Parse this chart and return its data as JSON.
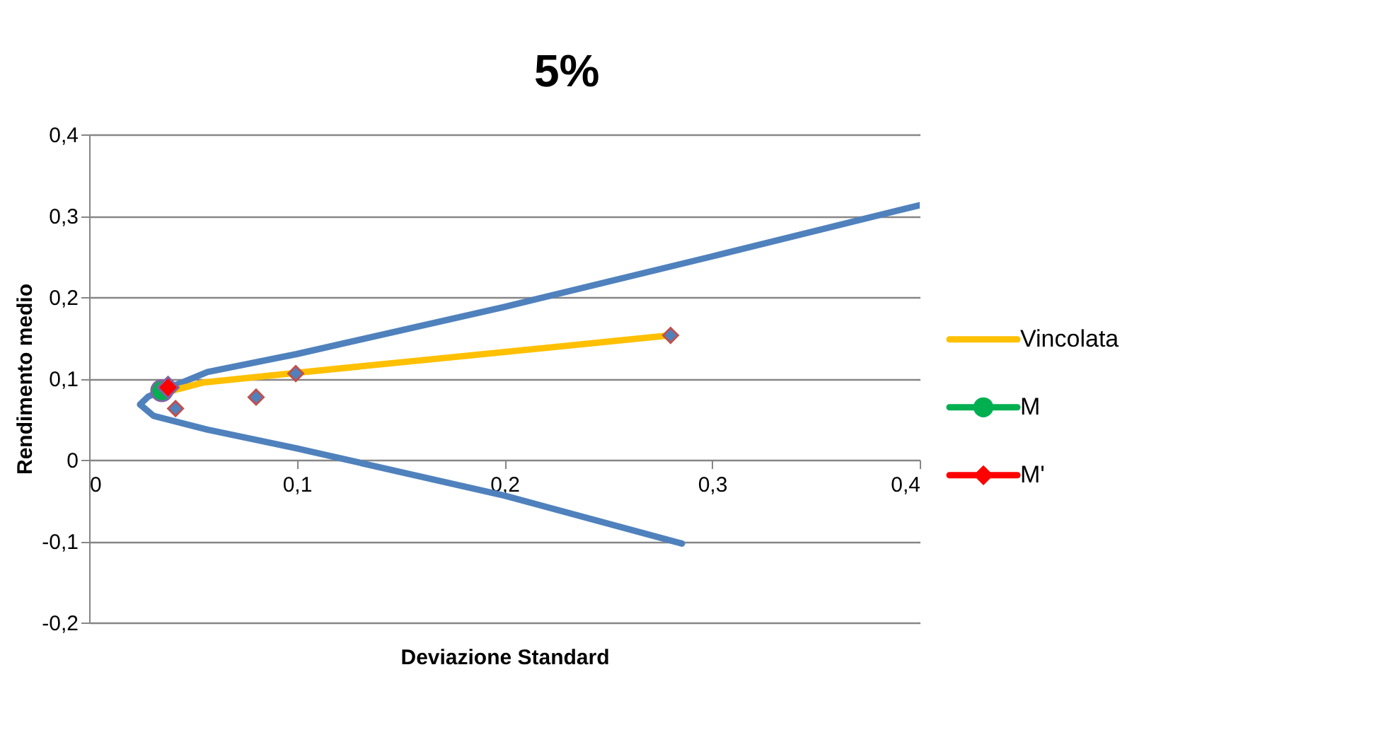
{
  "chart_data": {
    "type": "line",
    "title": "5%",
    "xlabel": "Deviazione Standard",
    "ylabel": "Rendimento medio",
    "xlim": [
      0,
      0.4
    ],
    "ylim": [
      -0.2,
      0.4
    ],
    "xticks": [
      0,
      {
        "value": 0.1,
        "label": "0,1"
      },
      {
        "value": 0.2,
        "label": "0,2"
      },
      {
        "value": 0.3,
        "label": "0,3"
      },
      {
        "value": 0.4,
        "label": "0,4"
      }
    ],
    "yticks": [
      {
        "value": -0.2,
        "label": "-0,2"
      },
      {
        "value": -0.1,
        "label": "-0,1"
      },
      0,
      {
        "value": 0.1,
        "label": "0,1"
      },
      {
        "value": 0.2,
        "label": "0,2"
      },
      {
        "value": 0.3,
        "label": "0,3"
      },
      {
        "value": 0.4,
        "label": "0,4"
      }
    ],
    "grid": "y",
    "legend": "right",
    "series": [
      {
        "color": "#4f81bd",
        "marker": "none",
        "x": [
          0.4,
          0.3,
          0.2,
          0.1,
          0.057,
          0.0286,
          0.0245,
          0.031,
          0.057,
          0.1,
          0.2,
          0.2855
        ],
        "values": [
          0.313,
          0.25,
          0.188,
          0.13,
          0.108,
          0.078,
          0.068,
          0.054,
          0.037,
          0.014,
          -0.044,
          -0.103
        ]
      },
      {
        "name": "Vincolata",
        "color": "#ffc000",
        "marker": "none",
        "x": [
          0.037,
          0.055,
          0.1,
          0.28
        ],
        "values": [
          0.083,
          0.095,
          0.107,
          0.153
        ]
      },
      {
        "type": "scatter",
        "name": "M",
        "color": "#00b050",
        "marker": "circle",
        "x": [
          0.035
        ],
        "values": [
          0.085
        ]
      },
      {
        "type": "scatter",
        "color": "#4f81bd",
        "marker": "diamond",
        "x": [
          0.0416,
          0.0804,
          0.0995,
          0.28
        ],
        "values": [
          0.063,
          0.077,
          0.106,
          0.153
        ]
      },
      {
        "type": "scatter",
        "name": "M'",
        "color": "#ff0000",
        "marker": "diamond",
        "x": [
          0.038
        ],
        "values": [
          0.089
        ]
      }
    ]
  }
}
